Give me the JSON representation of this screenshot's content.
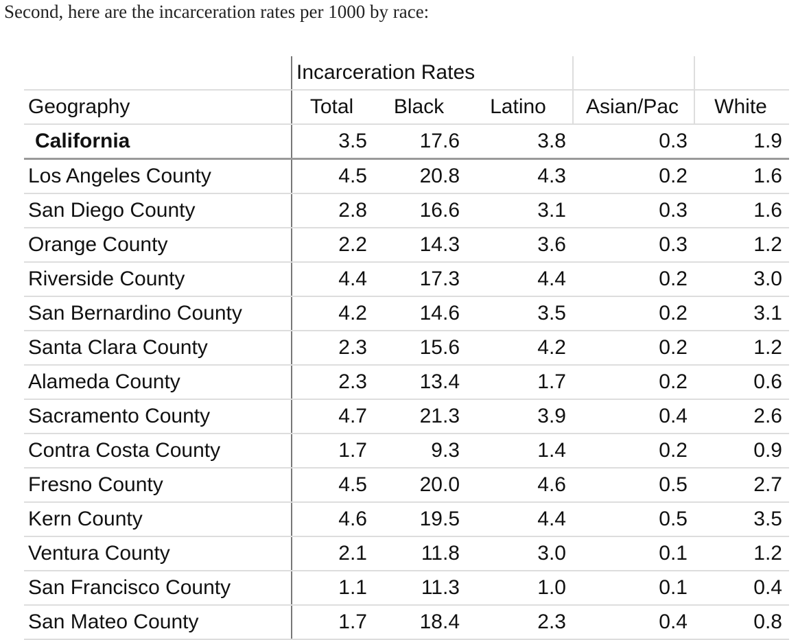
{
  "intro": "Second, here are the incarceration rates per 1000 by race:",
  "table": {
    "group_header": "Incarceration Rates",
    "columns": [
      "Geography",
      "Total",
      "Black",
      "Latino",
      "Asian/Pac",
      "White"
    ],
    "rows": [
      [
        "California",
        "3.5",
        "17.6",
        "3.8",
        "0.3",
        "1.9"
      ],
      [
        "Los Angeles County",
        "4.5",
        "20.8",
        "4.3",
        "0.2",
        "1.6"
      ],
      [
        "San Diego County",
        "2.8",
        "16.6",
        "3.1",
        "0.3",
        "1.6"
      ],
      [
        "Orange County",
        "2.2",
        "14.3",
        "3.6",
        "0.3",
        "1.2"
      ],
      [
        "Riverside County",
        "4.4",
        "17.3",
        "4.4",
        "0.2",
        "3.0"
      ],
      [
        "San Bernardino County",
        "4.2",
        "14.6",
        "3.5",
        "0.2",
        "3.1"
      ],
      [
        "Santa Clara County",
        "2.3",
        "15.6",
        "4.2",
        "0.2",
        "1.2"
      ],
      [
        "Alameda County",
        "2.3",
        "13.4",
        "1.7",
        "0.2",
        "0.6"
      ],
      [
        "Sacramento County",
        "4.7",
        "21.3",
        "3.9",
        "0.4",
        "2.6"
      ],
      [
        "Contra Costa County",
        "1.7",
        "9.3",
        "1.4",
        "0.2",
        "0.9"
      ],
      [
        "Fresno County",
        "4.5",
        "20.0",
        "4.6",
        "0.5",
        "2.7"
      ],
      [
        "Kern County",
        "4.6",
        "19.5",
        "4.4",
        "0.5",
        "3.5"
      ],
      [
        "Ventura County",
        "2.1",
        "11.8",
        "3.0",
        "0.1",
        "1.2"
      ],
      [
        "San Francisco County",
        "1.1",
        "11.3",
        "1.0",
        "0.1",
        "0.4"
      ],
      [
        "San Mateo County",
        "1.7",
        "18.4",
        "2.3",
        "0.4",
        "0.8"
      ]
    ]
  }
}
